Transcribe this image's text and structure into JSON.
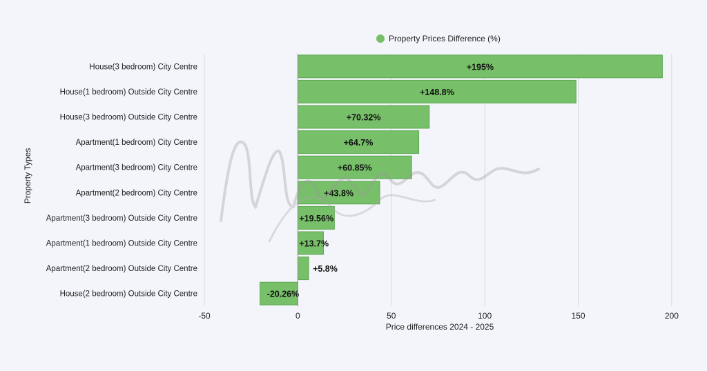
{
  "colors": {
    "bar": "#77bf69",
    "bar_stroke": "#5ea852",
    "grid": "#d7d9df",
    "text": "#222222"
  },
  "legend": {
    "label": "Property Prices Difference (%)"
  },
  "chart_data": {
    "type": "bar",
    "orientation": "horizontal",
    "title": "",
    "xlabel": "Price differences 2024 - 2025",
    "ylabel": "Property Types",
    "xlim": [
      -50,
      210
    ],
    "xticks": [
      -50,
      0,
      50,
      100,
      150,
      200
    ],
    "grid": true,
    "legend_position": "top-center",
    "categories": [
      "House(3 bedroom) City Centre",
      "House(1 bedroom) Outside City Centre",
      "House(3 bedroom) Outside City Centre",
      "Apartment(1 bedroom) City Centre",
      "Apartment(3 bedroom) City Centre",
      "Apartment(2 bedroom) City Centre",
      "Apartment(3 bedroom) Outside City Centre",
      "Apartment(1 bedroom) Outside City Centre",
      "Apartment(2 bedroom) Outside City Centre",
      "House(2 bedroom) Outside City Centre"
    ],
    "series": [
      {
        "name": "Property Prices Difference (%)",
        "values": [
          195,
          148.8,
          70.32,
          64.7,
          60.85,
          43.8,
          19.56,
          13.7,
          5.8,
          -20.26
        ],
        "labels": [
          "+195%",
          "+148.8%",
          "+70.32%",
          "+64.7%",
          "+60.85%",
          "+43.8%",
          "+19.56%",
          "+13.7%",
          "+5.8%",
          "-20.26%"
        ]
      }
    ]
  }
}
